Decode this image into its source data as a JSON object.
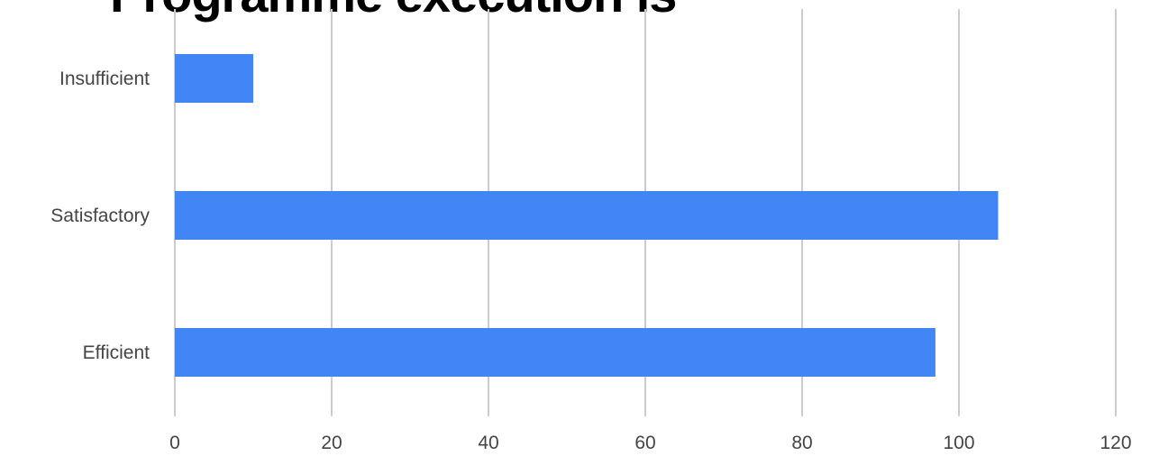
{
  "chart_data": {
    "type": "bar",
    "orientation": "horizontal",
    "title": "Programme execution is",
    "categories": [
      "Insufficient",
      "Satisfactory",
      "Efficient"
    ],
    "series": [
      {
        "values": [
          10,
          105,
          97
        ]
      }
    ],
    "xlim": [
      0,
      120
    ],
    "xticks": [
      "0",
      "20",
      "40",
      "60",
      "80",
      "100",
      "120"
    ],
    "grid": true,
    "legend": "none",
    "bar_color": "#4285f4",
    "grid_color": "#cccccc",
    "label_color": "#444444"
  }
}
